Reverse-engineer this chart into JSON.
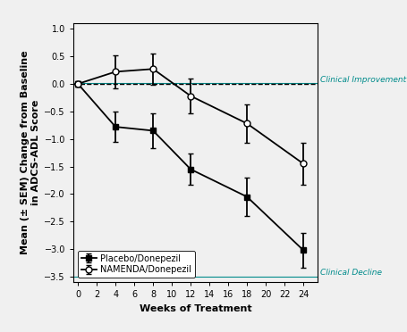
{
  "placebo_x": [
    0,
    4,
    8,
    12,
    18,
    24
  ],
  "placebo_y": [
    0,
    -0.78,
    -0.85,
    -1.55,
    -2.05,
    -3.02
  ],
  "placebo_yerr": [
    0.05,
    0.28,
    0.32,
    0.28,
    0.35,
    0.32
  ],
  "namenda_x": [
    0,
    4,
    8,
    12,
    18,
    24
  ],
  "namenda_y": [
    0,
    0.22,
    0.27,
    -0.22,
    -0.72,
    -1.45
  ],
  "namenda_yerr": [
    0.05,
    0.3,
    0.28,
    0.32,
    0.35,
    0.38
  ],
  "xlim": [
    -0.5,
    25.5
  ],
  "ylim": [
    -3.6,
    1.1
  ],
  "xticks": [
    0,
    2,
    4,
    6,
    8,
    10,
    12,
    14,
    16,
    18,
    20,
    22,
    24
  ],
  "yticks": [
    -3.5,
    -3.0,
    -2.5,
    -2.0,
    -1.5,
    -1.0,
    -0.5,
    0.0,
    0.5,
    1.0
  ],
  "xlabel": "Weeks of Treatment",
  "ylabel": "Mean (± SEM) Change from Baseline\nin ADCS-ADL Score",
  "legend_labels": [
    "Placebo/Donepezil",
    "NAMENDA/Donepezil"
  ],
  "annotation_improvement": "Clinical Improvement",
  "annotation_decline": "Clinical Decline",
  "color_placebo": "#000000",
  "color_namenda": "#000000",
  "ref_line_color": "#008B8B",
  "dashed_line_color": "#000000",
  "background_color": "#f0f0f0",
  "tick_fontsize": 7,
  "axis_label_fontsize": 8,
  "legend_fontsize": 7,
  "annotation_fontsize": 6.5
}
